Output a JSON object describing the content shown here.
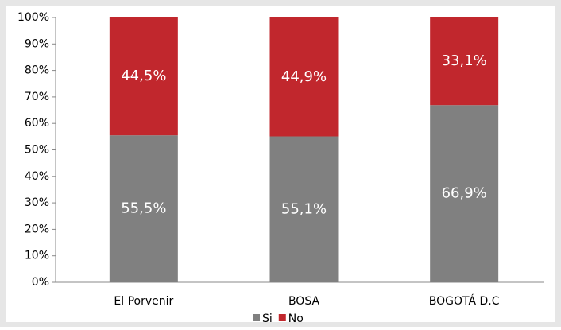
{
  "chart_data": {
    "type": "stacked_bar",
    "categories": [
      "El Porvenir",
      "BOSA",
      "BOGOTÁ D.C"
    ],
    "series": [
      {
        "name": "Si",
        "color": "#808080",
        "values": [
          55.5,
          55.1,
          66.9
        ],
        "value_labels": [
          "55,5%",
          "55,1%",
          "66,9%"
        ]
      },
      {
        "name": "No",
        "color": "#c1272d",
        "values": [
          44.5,
          44.9,
          33.1
        ],
        "value_labels": [
          "44,5%",
          "44,9%",
          "33,1%"
        ]
      }
    ],
    "ylim": [
      0,
      100
    ],
    "yticks": [
      {
        "value": 0,
        "label": "0%"
      },
      {
        "value": 10,
        "label": "10%"
      },
      {
        "value": 20,
        "label": "20%"
      },
      {
        "value": 30,
        "label": "30%"
      },
      {
        "value": 40,
        "label": "40%"
      },
      {
        "value": 50,
        "label": "50%"
      },
      {
        "value": 60,
        "label": "60%"
      },
      {
        "value": 70,
        "label": "70%"
      },
      {
        "value": 80,
        "label": "80%"
      },
      {
        "value": 90,
        "label": "90%"
      },
      {
        "value": 100,
        "label": "100%"
      }
    ],
    "legend": "bottom"
  }
}
